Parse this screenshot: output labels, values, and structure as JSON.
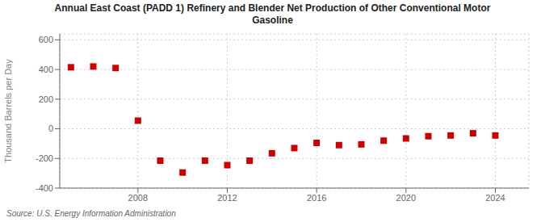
{
  "chart_data": {
    "type": "scatter",
    "title": "Annual East Coast (PADD 1) Refinery and Blender Net Production of Other Conventional Motor\nGasoline",
    "ylabel": "Thousand Barrels per Day",
    "annotations": [
      "Source: U.S. Energy Information Administration"
    ],
    "x": [
      2005,
      2006,
      2007,
      2008,
      2009,
      2010,
      2011,
      2012,
      2013,
      2014,
      2015,
      2016,
      2017,
      2018,
      2019,
      2020,
      2021,
      2022,
      2023,
      2024
    ],
    "values": [
      415,
      420,
      410,
      55,
      -215,
      -295,
      -215,
      -245,
      -215,
      -165,
      -130,
      -95,
      -110,
      -105,
      -80,
      -65,
      -50,
      -45,
      -30,
      -45
    ],
    "color": "#cc0000",
    "marker": "square",
    "xlim": [
      2004.5,
      2025.5
    ],
    "xticks": [
      2008,
      2012,
      2016,
      2020,
      2024
    ],
    "ylim": [
      -400,
      640
    ],
    "yticks": [
      -400,
      -200,
      0,
      200,
      400,
      600
    ],
    "grid": true
  }
}
